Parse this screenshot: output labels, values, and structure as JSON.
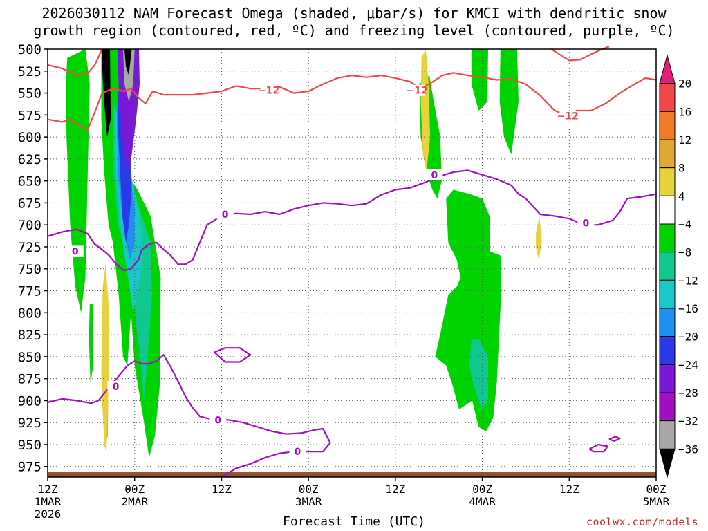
{
  "title": {
    "line1": "2026030112 NAM Forecast Omega (shaded, μbar/s) for KMCI with dendritic snow",
    "line2": "growth region (contoured, red, ºC) and freezing level (contoured, purple, ºC)"
  },
  "credit": "coolwx.com/models",
  "chart_data": {
    "type": "heatmap",
    "title": "2026030112 NAM Forecast Omega (shaded, μbar/s) for KMCI with dendritic snow growth region (contoured, red, ºC) and freezing level (contoured, purple, ºC)",
    "xlabel": "Forecast Time (UTC)",
    "ylabel": "",
    "x_range_hours": [
      0,
      84
    ],
    "y_range_hPa": [
      500,
      987
    ],
    "grid": true,
    "x_ticks": [
      {
        "hour": 0,
        "lines": [
          "12Z",
          "1MAR",
          "2026"
        ]
      },
      {
        "hour": 12,
        "lines": [
          "00Z",
          "2MAR"
        ]
      },
      {
        "hour": 24,
        "lines": [
          "12Z"
        ]
      },
      {
        "hour": 36,
        "lines": [
          "00Z",
          "3MAR"
        ]
      },
      {
        "hour": 48,
        "lines": [
          "12Z"
        ]
      },
      {
        "hour": 60,
        "lines": [
          "00Z",
          "4MAR"
        ]
      },
      {
        "hour": 72,
        "lines": [
          "12Z"
        ]
      },
      {
        "hour": 84,
        "lines": [
          "00Z",
          "5MAR"
        ]
      }
    ],
    "y_ticks": [
      500,
      525,
      550,
      575,
      600,
      625,
      650,
      675,
      700,
      725,
      750,
      775,
      800,
      825,
      850,
      875,
      900,
      925,
      950,
      975
    ],
    "colorbar": {
      "levels": [
        -36,
        -32,
        -28,
        -24,
        -20,
        -16,
        -12,
        -8,
        -4,
        4,
        8,
        12,
        16,
        20
      ],
      "labels": [
        "20",
        "16",
        "12",
        "8",
        "4",
        "−4",
        "−8",
        "−12",
        "−16",
        "−20",
        "−24",
        "−28",
        "−32",
        "−36"
      ],
      "bands_top_to_bottom": [
        {
          "range": "> 20",
          "color": "#e0207a"
        },
        {
          "range": "16 to 20",
          "color": "#f04848"
        },
        {
          "range": "12 to 16",
          "color": "#f07a28"
        },
        {
          "range": "8 to 12",
          "color": "#e0a830"
        },
        {
          "range": "4 to 8",
          "color": "#e6d23a"
        },
        {
          "range": "-4 to 4",
          "color": "#ffffff"
        },
        {
          "range": "-8 to -4",
          "color": "#00d400"
        },
        {
          "range": "-12 to -8",
          "color": "#10c890"
        },
        {
          "range": "-16 to -12",
          "color": "#18c8c8"
        },
        {
          "range": "-20 to -16",
          "color": "#2090f0"
        },
        {
          "range": "-24 to -20",
          "color": "#2a3ae8"
        },
        {
          "range": "-28 to -24",
          "color": "#7a18d8"
        },
        {
          "range": "-32 to -28",
          "color": "#a010c0"
        },
        {
          "range": "-36 to -32",
          "color": "#a8a8a8"
        },
        {
          "range": "< -36",
          "color": "#000000"
        }
      ]
    },
    "contours": [
      {
        "name": "-12",
        "color": "#f04848",
        "label": "−12",
        "points": [
          [
            0,
            580
          ],
          [
            2,
            583
          ],
          [
            3,
            580
          ],
          [
            4.5,
            587
          ],
          [
            5.5,
            592
          ],
          [
            6.5,
            572
          ],
          [
            7.5,
            550
          ],
          [
            9,
            545
          ],
          [
            10.5,
            548
          ],
          [
            11.5,
            545
          ],
          [
            12.5,
            555
          ],
          [
            13.5,
            562
          ],
          [
            14.5,
            548
          ],
          [
            16,
            552
          ],
          [
            18,
            552
          ],
          [
            20,
            552
          ],
          [
            22,
            550
          ],
          [
            24,
            548
          ],
          [
            26,
            542
          ],
          [
            28,
            545
          ],
          [
            30,
            545
          ],
          [
            32,
            543
          ],
          [
            34,
            550
          ],
          [
            36,
            548
          ],
          [
            38,
            540
          ],
          [
            40,
            533
          ],
          [
            42,
            530
          ],
          [
            44,
            532
          ],
          [
            46,
            530
          ],
          [
            48,
            533
          ],
          [
            50,
            537
          ],
          [
            51.5,
            545
          ],
          [
            53,
            538
          ],
          [
            54.5,
            530
          ],
          [
            56,
            527
          ],
          [
            58,
            530
          ],
          [
            60,
            532
          ],
          [
            62,
            535
          ],
          [
            64,
            534
          ],
          [
            66,
            540
          ],
          [
            68,
            553
          ],
          [
            70,
            570
          ],
          [
            71.5,
            575
          ],
          [
            73,
            570
          ],
          [
            75,
            570
          ],
          [
            77,
            562
          ],
          [
            79,
            550
          ],
          [
            81,
            540
          ],
          [
            82.5,
            533
          ],
          [
            84,
            535
          ]
        ]
      },
      {
        "name": "-12 (top left)",
        "color": "#f04848",
        "label": "",
        "points": [
          [
            0,
            518
          ],
          [
            2,
            522
          ],
          [
            4,
            530
          ],
          [
            5.5,
            528
          ],
          [
            6.5,
            518
          ],
          [
            7.5,
            500
          ]
        ]
      },
      {
        "name": "-12 (top right)",
        "color": "#f04848",
        "label": "",
        "points": [
          [
            69.5,
            500
          ],
          [
            72,
            513
          ],
          [
            73.5,
            512
          ],
          [
            74.5,
            508
          ],
          [
            76,
            502
          ],
          [
            77.5,
            497
          ]
        ]
      },
      {
        "name": "0",
        "color": "#a010c0",
        "label": "0",
        "points": [
          [
            0,
            713
          ],
          [
            2,
            708
          ],
          [
            4,
            705
          ],
          [
            5.5,
            710
          ],
          [
            6.5,
            722
          ],
          [
            7.5,
            728
          ],
          [
            8.5,
            735
          ],
          [
            9.5,
            745
          ],
          [
            10.5,
            752
          ],
          [
            11.5,
            750
          ],
          [
            12.5,
            740
          ],
          [
            13,
            728
          ],
          [
            14,
            722
          ],
          [
            15,
            720
          ],
          [
            16,
            728
          ],
          [
            17,
            735
          ],
          [
            18,
            745
          ],
          [
            19,
            745
          ],
          [
            20,
            740
          ],
          [
            21,
            720
          ],
          [
            22,
            700
          ],
          [
            24,
            690
          ],
          [
            26,
            687
          ],
          [
            28,
            688
          ],
          [
            30,
            685
          ],
          [
            32,
            688
          ],
          [
            34,
            682
          ],
          [
            36,
            678
          ],
          [
            38,
            675
          ],
          [
            40,
            676
          ],
          [
            42,
            678
          ],
          [
            44,
            676
          ],
          [
            46,
            666
          ],
          [
            48,
            660
          ],
          [
            50,
            658
          ],
          [
            52,
            652
          ],
          [
            54,
            645
          ],
          [
            56,
            640
          ],
          [
            58,
            638
          ],
          [
            60,
            643
          ],
          [
            62,
            648
          ],
          [
            64,
            655
          ],
          [
            65,
            665
          ],
          [
            66,
            670
          ],
          [
            68,
            688
          ],
          [
            70,
            690
          ],
          [
            72,
            693
          ],
          [
            74,
            700
          ],
          [
            76,
            700
          ],
          [
            78,
            695
          ],
          [
            79,
            685
          ],
          [
            80,
            670
          ],
          [
            82,
            668
          ],
          [
            84,
            665
          ]
        ]
      },
      {
        "name": "0 (lower)",
        "color": "#a010c0",
        "label": "0",
        "points": [
          [
            0,
            902
          ],
          [
            2,
            898
          ],
          [
            4,
            900
          ],
          [
            6,
            903
          ],
          [
            7,
            900
          ],
          [
            8,
            890
          ],
          [
            9,
            880
          ],
          [
            10,
            870
          ],
          [
            11,
            860
          ],
          [
            12,
            855
          ],
          [
            13,
            858
          ],
          [
            14,
            858
          ],
          [
            15,
            855
          ],
          [
            16,
            848
          ],
          [
            17,
            862
          ],
          [
            18,
            878
          ],
          [
            19,
            895
          ],
          [
            20,
            908
          ],
          [
            21,
            918
          ],
          [
            23,
            922
          ],
          [
            25,
            922
          ],
          [
            27,
            925
          ],
          [
            29,
            930
          ],
          [
            31,
            935
          ],
          [
            33,
            938
          ],
          [
            35,
            937
          ],
          [
            37,
            933
          ],
          [
            38,
            932
          ],
          [
            39,
            948
          ],
          [
            38,
            958
          ],
          [
            36,
            958
          ],
          [
            34,
            958
          ],
          [
            32,
            960
          ],
          [
            30,
            965
          ],
          [
            28,
            972
          ],
          [
            26,
            977
          ],
          [
            24,
            987
          ]
        ]
      },
      {
        "name": "0 (closed 850)",
        "color": "#a010c0",
        "label": "",
        "points": [
          [
            23,
            845
          ],
          [
            24.5,
            840
          ],
          [
            26.5,
            840
          ],
          [
            28,
            848
          ],
          [
            26.5,
            856
          ],
          [
            24.5,
            856
          ],
          [
            23,
            845
          ]
        ]
      },
      {
        "name": "0 (closed 955)",
        "color": "#a010c0",
        "label": "",
        "points": [
          [
            74.8,
            955
          ],
          [
            76,
            950
          ],
          [
            77.3,
            952
          ],
          [
            76.8,
            958
          ],
          [
            75.3,
            958
          ],
          [
            74.8,
            955
          ]
        ]
      },
      {
        "name": "0 (closed 945)",
        "color": "#a010c0",
        "label": "",
        "points": [
          [
            77.5,
            944
          ],
          [
            78.4,
            941
          ],
          [
            79,
            943
          ],
          [
            78.2,
            946
          ],
          [
            77.5,
            944
          ]
        ]
      }
    ]
  }
}
